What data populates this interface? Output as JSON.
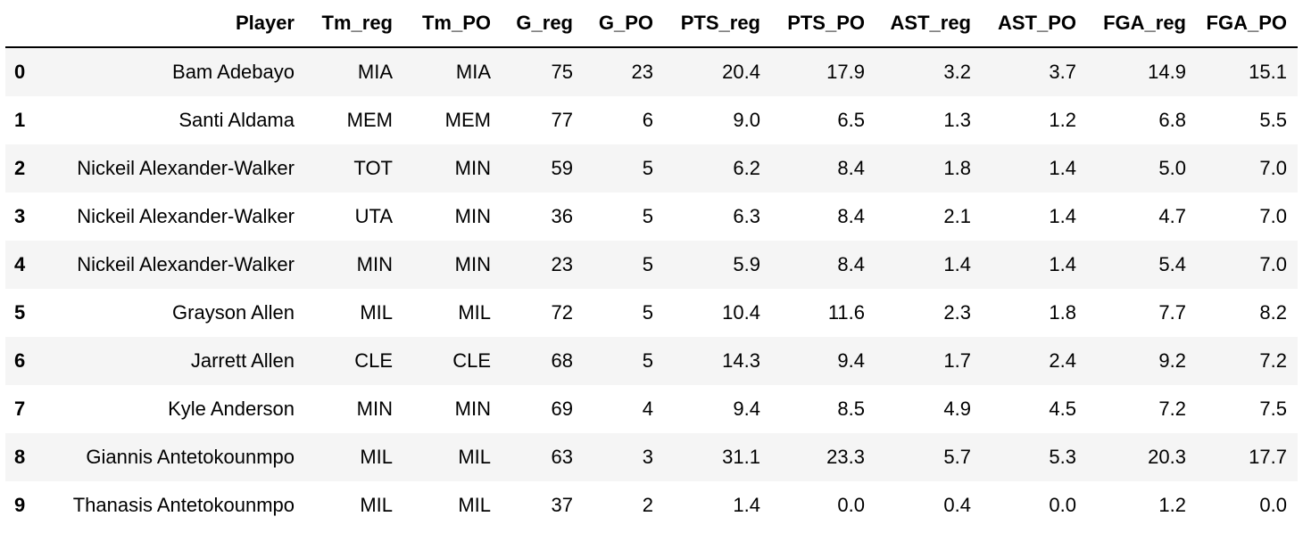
{
  "table": {
    "columns": [
      "",
      "Player",
      "Tm_reg",
      "Tm_PO",
      "G_reg",
      "G_PO",
      "PTS_reg",
      "PTS_PO",
      "AST_reg",
      "AST_PO",
      "FGA_reg",
      "FGA_PO"
    ],
    "rows": [
      {
        "index": "0",
        "cells": [
          "Bam Adebayo",
          "MIA",
          "MIA",
          "75",
          "23",
          "20.4",
          "17.9",
          "3.2",
          "3.7",
          "14.9",
          "15.1"
        ]
      },
      {
        "index": "1",
        "cells": [
          "Santi Aldama",
          "MEM",
          "MEM",
          "77",
          "6",
          "9.0",
          "6.5",
          "1.3",
          "1.2",
          "6.8",
          "5.5"
        ]
      },
      {
        "index": "2",
        "cells": [
          "Nickeil Alexander-Walker",
          "TOT",
          "MIN",
          "59",
          "5",
          "6.2",
          "8.4",
          "1.8",
          "1.4",
          "5.0",
          "7.0"
        ]
      },
      {
        "index": "3",
        "cells": [
          "Nickeil Alexander-Walker",
          "UTA",
          "MIN",
          "36",
          "5",
          "6.3",
          "8.4",
          "2.1",
          "1.4",
          "4.7",
          "7.0"
        ]
      },
      {
        "index": "4",
        "cells": [
          "Nickeil Alexander-Walker",
          "MIN",
          "MIN",
          "23",
          "5",
          "5.9",
          "8.4",
          "1.4",
          "1.4",
          "5.4",
          "7.0"
        ]
      },
      {
        "index": "5",
        "cells": [
          "Grayson Allen",
          "MIL",
          "MIL",
          "72",
          "5",
          "10.4",
          "11.6",
          "2.3",
          "1.8",
          "7.7",
          "8.2"
        ]
      },
      {
        "index": "6",
        "cells": [
          "Jarrett Allen",
          "CLE",
          "CLE",
          "68",
          "5",
          "14.3",
          "9.4",
          "1.7",
          "2.4",
          "9.2",
          "7.2"
        ]
      },
      {
        "index": "7",
        "cells": [
          "Kyle Anderson",
          "MIN",
          "MIN",
          "69",
          "4",
          "9.4",
          "8.5",
          "4.9",
          "4.5",
          "7.2",
          "7.5"
        ]
      },
      {
        "index": "8",
        "cells": [
          "Giannis Antetokounmpo",
          "MIL",
          "MIL",
          "63",
          "3",
          "31.1",
          "23.3",
          "5.7",
          "5.3",
          "20.3",
          "17.7"
        ]
      },
      {
        "index": "9",
        "cells": [
          "Thanasis Antetokounmpo",
          "MIL",
          "MIL",
          "37",
          "2",
          "1.4",
          "0.0",
          "0.4",
          "0.0",
          "1.2",
          "0.0"
        ]
      }
    ]
  },
  "colors": {
    "stripe": "#f5f5f5",
    "header_rule": "#000000"
  }
}
